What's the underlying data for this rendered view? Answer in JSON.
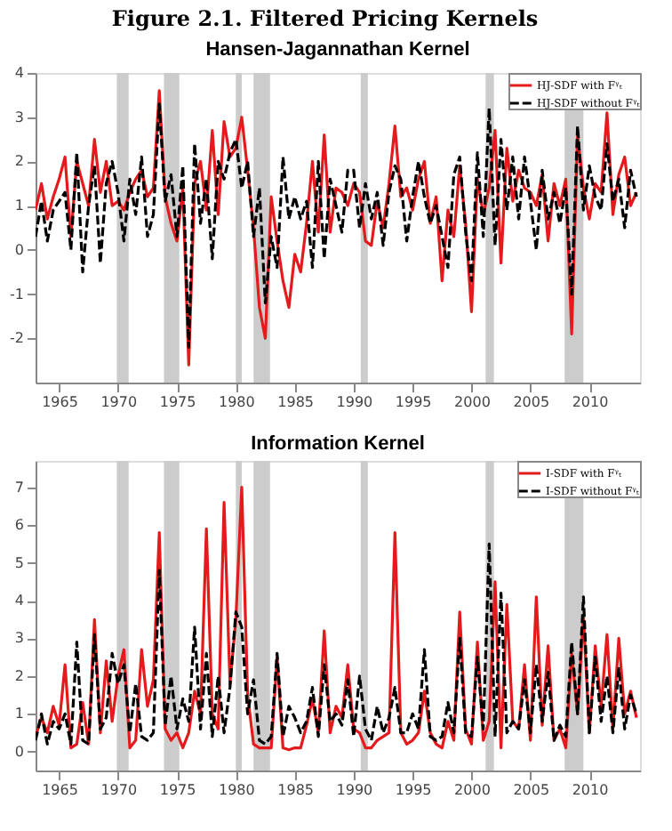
{
  "chart_data": [
    {
      "type": "line",
      "title": "Hansen-Jagannathan Kernel",
      "annotations": [
        "Figure 2.1. Filtered Pricing Kernels"
      ],
      "x": [
        1963,
        1963.5,
        1964,
        1964.5,
        1965,
        1965.5,
        1966,
        1966.5,
        1967,
        1967.5,
        1968,
        1968.5,
        1969,
        1969.5,
        1970,
        1970.5,
        1971,
        1971.5,
        1972,
        1972.5,
        1973,
        1973.5,
        1974,
        1974.5,
        1975,
        1975.5,
        1976,
        1976.5,
        1977,
        1977.5,
        1978,
        1978.5,
        1979,
        1979.5,
        1980,
        1980.5,
        1981,
        1981.5,
        1982,
        1982.5,
        1983,
        1983.5,
        1984,
        1984.5,
        1985,
        1985.5,
        1986,
        1986.5,
        1987,
        1987.5,
        1988,
        1988.5,
        1989,
        1989.5,
        1990,
        1990.5,
        1991,
        1991.5,
        1992,
        1992.5,
        1993,
        1993.5,
        1994,
        1994.5,
        1995,
        1995.5,
        1996,
        1996.5,
        1997,
        1997.5,
        1998,
        1998.5,
        1999,
        1999.5,
        2000,
        2000.5,
        2001,
        2001.5,
        2002,
        2002.5,
        2003,
        2003.5,
        2004,
        2004.5,
        2005,
        2005.5,
        2006,
        2006.5,
        2007,
        2007.5,
        2008,
        2008.5,
        2009,
        2009.5,
        2010,
        2010.5,
        2011,
        2011.5,
        2012,
        2012.5,
        2013,
        2013.5,
        2014
      ],
      "series": [
        {
          "name": "HJ-SDF with Fᵞₜ",
          "color": "#e41a1c",
          "line_style": "solid",
          "values": [
            0.9,
            1.5,
            0.7,
            1.2,
            1.6,
            2.1,
            0.3,
            2.0,
            1.5,
            1.0,
            2.5,
            1.3,
            2.0,
            1.0,
            1.1,
            0.9,
            1.3,
            1.6,
            1.8,
            1.2,
            1.4,
            3.6,
            1.2,
            0.6,
            0.2,
            1.4,
            -2.6,
            1.5,
            2.0,
            0.9,
            2.7,
            0.8,
            2.9,
            2.1,
            2.3,
            3.0,
            1.8,
            0.5,
            -1.3,
            -2.0,
            1.2,
            0.2,
            -0.7,
            -1.3,
            -0.1,
            -0.5,
            0.6,
            2.0,
            0.4,
            2.6,
            0.4,
            1.4,
            1.3,
            1.0,
            1.5,
            1.3,
            0.2,
            0.1,
            1.1,
            0.5,
            1.5,
            2.8,
            1.2,
            1.4,
            0.9,
            1.6,
            2.0,
            0.6,
            1.2,
            -0.7,
            0.9,
            0.3,
            1.9,
            0.6,
            -1.4,
            1.6,
            0.8,
            1.4,
            2.7,
            -0.3,
            2.3,
            1.1,
            1.8,
            1.4,
            1.3,
            1.0,
            1.7,
            0.2,
            1.5,
            1.0,
            1.6,
            -1.9,
            2.6,
            1.4,
            0.7,
            1.5,
            1.3,
            3.1,
            0.8,
            1.7,
            2.1,
            1.0,
            1.3
          ]
        },
        {
          "name": "HJ-SDF without Fᵞₜ",
          "color": "#000000",
          "line_style": "dashed",
          "values": [
            0.3,
            1.1,
            0.2,
            0.9,
            1.1,
            1.3,
            0.0,
            2.2,
            -0.5,
            1.0,
            1.9,
            -0.3,
            1.5,
            2.0,
            1.3,
            0.2,
            1.6,
            0.8,
            2.1,
            0.3,
            0.8,
            3.3,
            1.1,
            1.7,
            0.3,
            1.9,
            -2.2,
            2.4,
            0.6,
            1.6,
            -0.2,
            2.0,
            1.6,
            2.2,
            2.5,
            1.4,
            2.0,
            0.3,
            1.4,
            -1.2,
            0.3,
            -0.4,
            2.1,
            0.7,
            1.2,
            0.7,
            1.1,
            -0.4,
            2.0,
            -0.2,
            1.6,
            1.0,
            0.4,
            1.8,
            1.8,
            0.5,
            1.5,
            0.7,
            1.3,
            0.1,
            1.3,
            1.9,
            1.6,
            0.2,
            1.2,
            2.0,
            1.2,
            0.6,
            1.0,
            0.3,
            -0.4,
            1.7,
            2.1,
            0.4,
            -0.7,
            2.2,
            0.3,
            3.2,
            0.1,
            2.5,
            0.9,
            2.1,
            0.7,
            2.1,
            1.1,
            0.0,
            1.8,
            0.7,
            1.3,
            0.6,
            1.4,
            -1.0,
            2.8,
            0.9,
            1.9,
            1.2,
            0.9,
            2.4,
            1.1,
            1.6,
            0.5,
            1.8,
            1.2
          ]
        }
      ],
      "bands": [
        {
          "axis": "x",
          "from": 1969.9,
          "to": 1970.9,
          "color": "#cccccc"
        },
        {
          "axis": "x",
          "from": 1973.9,
          "to": 1975.2,
          "color": "#cccccc"
        },
        {
          "axis": "x",
          "from": 1980.0,
          "to": 1980.5,
          "color": "#cccccc"
        },
        {
          "axis": "x",
          "from": 1981.5,
          "to": 1982.9,
          "color": "#cccccc"
        },
        {
          "axis": "x",
          "from": 1990.6,
          "to": 1991.2,
          "color": "#cccccc"
        },
        {
          "axis": "x",
          "from": 2001.2,
          "to": 2001.9,
          "color": "#cccccc"
        },
        {
          "axis": "x",
          "from": 2007.9,
          "to": 2009.5,
          "color": "#cccccc"
        }
      ],
      "xlim": [
        1963,
        2014.3
      ],
      "xticks": [
        1965,
        1970,
        1975,
        1980,
        1985,
        1990,
        1995,
        2000,
        2005,
        2010
      ],
      "ylim": [
        -3,
        4
      ],
      "yticks": [
        -2,
        -1,
        0,
        1,
        2,
        3,
        4
      ],
      "grid": false,
      "legend": "top right"
    },
    {
      "type": "line",
      "title": "Information Kernel",
      "x": [
        1963,
        1963.5,
        1964,
        1964.5,
        1965,
        1965.5,
        1966,
        1966.5,
        1967,
        1967.5,
        1968,
        1968.5,
        1969,
        1969.5,
        1970,
        1970.5,
        1971,
        1971.5,
        1972,
        1972.5,
        1973,
        1973.5,
        1974,
        1974.5,
        1975,
        1975.5,
        1976,
        1976.5,
        1977,
        1977.5,
        1978,
        1978.5,
        1979,
        1979.5,
        1980,
        1980.5,
        1981,
        1981.5,
        1982,
        1982.5,
        1983,
        1983.5,
        1984,
        1984.5,
        1985,
        1985.5,
        1986,
        1986.5,
        1987,
        1987.5,
        1988,
        1988.5,
        1989,
        1989.5,
        1990,
        1990.5,
        1991,
        1991.5,
        1992,
        1992.5,
        1993,
        1993.5,
        1994,
        1994.5,
        1995,
        1995.5,
        1996,
        1996.5,
        1997,
        1997.5,
        1998,
        1998.5,
        1999,
        1999.5,
        2000,
        2000.5,
        2001,
        2001.5,
        2002,
        2002.5,
        2003,
        2003.5,
        2004,
        2004.5,
        2005,
        2005.5,
        2006,
        2006.5,
        2007,
        2007.5,
        2008,
        2008.5,
        2009,
        2009.5,
        2010,
        2010.5,
        2011,
        2011.5,
        2012,
        2012.5,
        2013,
        2013.5,
        2014
      ],
      "series": [
        {
          "name": "I-SDF with Fᵞₜ",
          "color": "#e41a1c",
          "line_style": "solid",
          "values": [
            0.4,
            0.9,
            0.5,
            1.2,
            0.7,
            2.3,
            0.1,
            0.2,
            1.3,
            0.2,
            3.5,
            0.5,
            2.4,
            0.8,
            2.0,
            2.7,
            0.1,
            0.3,
            2.7,
            1.2,
            1.9,
            5.8,
            0.6,
            0.3,
            0.5,
            0.1,
            0.5,
            1.6,
            1.0,
            5.9,
            1.0,
            0.6,
            6.6,
            1.8,
            3.5,
            7.0,
            1.5,
            0.2,
            0.1,
            0.1,
            0.1,
            2.5,
            0.1,
            0.05,
            0.1,
            0.1,
            0.7,
            1.4,
            0.5,
            3.2,
            0.5,
            1.2,
            0.9,
            2.3,
            0.6,
            0.5,
            0.1,
            0.1,
            0.3,
            0.4,
            0.5,
            5.8,
            0.5,
            0.2,
            0.3,
            0.5,
            1.6,
            0.5,
            0.2,
            0.1,
            0.8,
            0.3,
            3.7,
            0.6,
            0.2,
            2.9,
            0.3,
            0.8,
            4.5,
            0.1,
            3.9,
            0.8,
            0.6,
            2.3,
            0.3,
            4.1,
            0.7,
            2.8,
            0.3,
            0.6,
            0.1,
            2.6,
            1.0,
            3.6,
            0.5,
            2.8,
            1.2,
            3.1,
            0.6,
            3.0,
            1.0,
            1.6,
            0.9
          ]
        },
        {
          "name": "I-SDF without Fᵞₜ",
          "color": "#000000",
          "line_style": "dashed",
          "values": [
            0.3,
            1.0,
            0.2,
            0.8,
            0.6,
            1.0,
            0.2,
            2.9,
            0.3,
            0.2,
            3.1,
            0.6,
            0.9,
            2.6,
            1.8,
            2.3,
            0.5,
            1.8,
            0.4,
            0.3,
            0.5,
            4.8,
            0.7,
            2.0,
            0.6,
            1.4,
            0.8,
            3.3,
            0.6,
            2.6,
            0.4,
            2.0,
            0.5,
            1.7,
            3.7,
            3.3,
            1.0,
            1.9,
            0.3,
            0.2,
            0.4,
            2.6,
            0.4,
            1.2,
            0.9,
            0.5,
            0.8,
            1.7,
            0.4,
            2.3,
            0.8,
            1.0,
            0.7,
            1.9,
            0.4,
            2.0,
            0.6,
            0.3,
            1.2,
            0.5,
            0.9,
            1.7,
            0.5,
            0.5,
            1.0,
            0.6,
            2.7,
            0.4,
            0.3,
            0.4,
            1.3,
            0.5,
            3.0,
            0.5,
            0.4,
            2.5,
            0.6,
            5.5,
            0.4,
            4.2,
            0.5,
            0.8,
            0.6,
            1.9,
            0.5,
            2.3,
            0.8,
            2.1,
            0.3,
            0.7,
            0.4,
            2.9,
            1.0,
            4.1,
            0.5,
            2.5,
            0.8,
            2.0,
            0.5,
            2.2,
            0.6,
            1.5,
            1.0
          ]
        }
      ],
      "bands": [
        {
          "axis": "x",
          "from": 1969.9,
          "to": 1970.9,
          "color": "#cccccc"
        },
        {
          "axis": "x",
          "from": 1973.9,
          "to": 1975.2,
          "color": "#cccccc"
        },
        {
          "axis": "x",
          "from": 1980.0,
          "to": 1980.5,
          "color": "#cccccc"
        },
        {
          "axis": "x",
          "from": 1981.5,
          "to": 1982.9,
          "color": "#cccccc"
        },
        {
          "axis": "x",
          "from": 1990.6,
          "to": 1991.2,
          "color": "#cccccc"
        },
        {
          "axis": "x",
          "from": 2001.2,
          "to": 2001.9,
          "color": "#cccccc"
        },
        {
          "axis": "x",
          "from": 2007.9,
          "to": 2009.5,
          "color": "#cccccc"
        }
      ],
      "xlim": [
        1963,
        2014.3
      ],
      "xticks": [
        1965,
        1970,
        1975,
        1980,
        1985,
        1990,
        1995,
        2000,
        2005,
        2010
      ],
      "ylim": [
        -0.5,
        7.7
      ],
      "yticks": [
        0,
        1,
        2,
        3,
        4,
        5,
        6,
        7
      ],
      "grid": false,
      "legend": "top right"
    }
  ]
}
